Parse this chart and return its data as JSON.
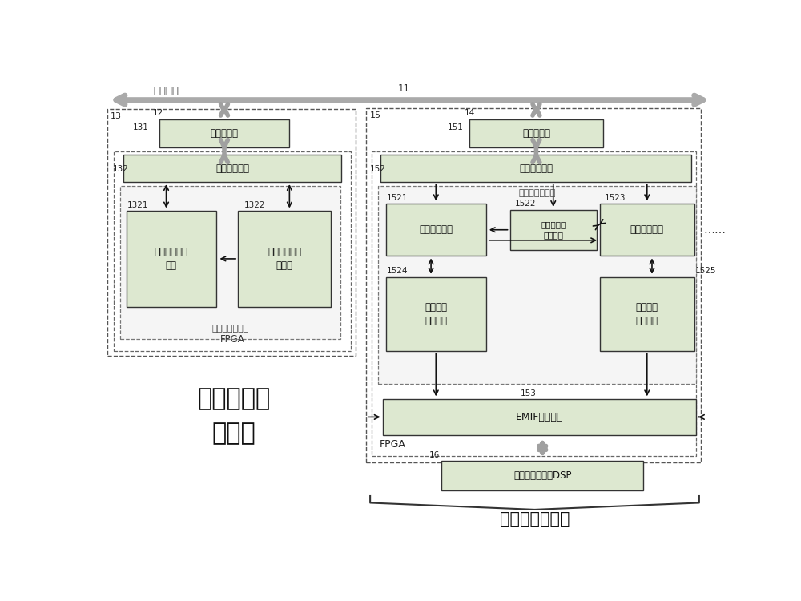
{
  "bg_color": "#ffffff",
  "box_fill_light": "#dce9d5",
  "box_fill_gray": "#d8d8d8",
  "box_edge_dark": "#222222",
  "title_left_line1": "中央时钟管",
  "title_left_line2": "理节点",
  "title_bottom": "若干个通讯节点",
  "label_bus": "仪器总线",
  "label_11": "11",
  "label_12": "12",
  "label_13": "13",
  "label_14": "14",
  "label_15": "15",
  "label_16": "16",
  "label_131": "131",
  "label_132": "132",
  "label_151": "151",
  "label_152": "152",
  "label_153": "153",
  "label_1321": "1321",
  "label_1322": "1322",
  "label_1521": "1521",
  "label_1522": "1522",
  "label_1523": "1523",
  "label_1524": "1524",
  "label_1525": "1525",
  "text_bus_xcvr_l": "总线收发器",
  "text_bus_if_l": "总线接口模块",
  "text_clock_gen": "中央时钟产生\n单元",
  "text_sync_mgr_l": "同步模式切换\n管理器",
  "text_clk_mgr": "中央时钟管理器",
  "text_fpga_l": "FPGA",
  "text_bus_xcvr_r": "总线收发器",
  "text_fpga_r": "FPGA",
  "text_bus_if_r": "总线接口模块",
  "text_send_ctrl": "发送控制单元",
  "text_sync_mgr_r": "同步模式切\n换管理器",
  "text_recv_ctrl": "接收控制单元",
  "text_send_buf": "发送数据\n缓存单元",
  "text_recv_buf": "接收数据\n缓存单元",
  "text_node_mgr": "节点总线管理器",
  "text_emif": "EMIF接口模块",
  "text_dsp": "数字信号处理器DSP",
  "text_dots": "……"
}
